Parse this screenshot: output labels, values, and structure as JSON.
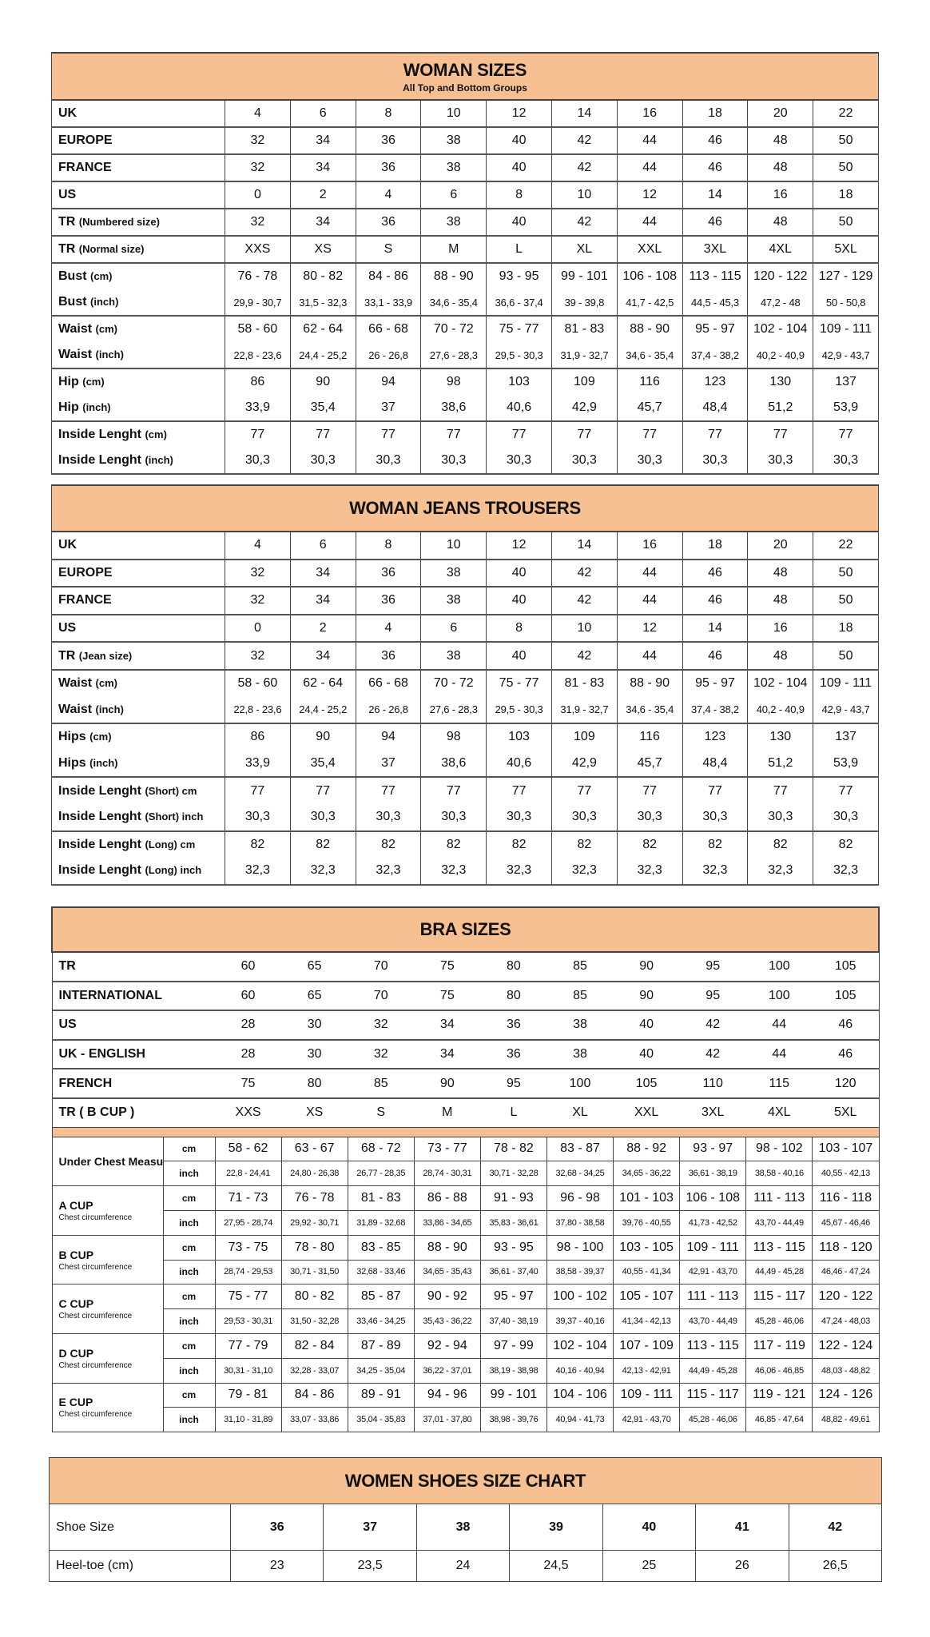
{
  "colors": {
    "header_bg": "#f6c093",
    "border": "#444444"
  },
  "woman_sizes": {
    "title": "WOMAN SIZES",
    "subtitle": "All Top and Bottom Groups",
    "sections": [
      [
        {
          "label": "UK",
          "unit": "",
          "values": [
            "4",
            "6",
            "8",
            "10",
            "12",
            "14",
            "16",
            "18",
            "20",
            "22"
          ]
        }
      ],
      [
        {
          "label": "EUROPE",
          "unit": "",
          "values": [
            "32",
            "34",
            "36",
            "38",
            "40",
            "42",
            "44",
            "46",
            "48",
            "50"
          ]
        }
      ],
      [
        {
          "label": "FRANCE",
          "unit": "",
          "values": [
            "32",
            "34",
            "36",
            "38",
            "40",
            "42",
            "44",
            "46",
            "48",
            "50"
          ]
        }
      ],
      [
        {
          "label": "US",
          "unit": "",
          "values": [
            "0",
            "2",
            "4",
            "6",
            "8",
            "10",
            "12",
            "14",
            "16",
            "18"
          ]
        }
      ],
      [
        {
          "label": "TR",
          "unit": "(Numbered size)",
          "values": [
            "32",
            "34",
            "36",
            "38",
            "40",
            "42",
            "44",
            "46",
            "48",
            "50"
          ]
        }
      ],
      [
        {
          "label": "TR",
          "unit": "(Normal size)",
          "values": [
            "XXS",
            "XS",
            "S",
            "M",
            "L",
            "XL",
            "XXL",
            "3XL",
            "4XL",
            "5XL"
          ]
        }
      ],
      [
        {
          "label": "Bust",
          "unit": "(cm)",
          "values": [
            "76 - 78",
            "80 - 82",
            "84 - 86",
            "88 - 90",
            "93 - 95",
            "99 - 101",
            "106 - 108",
            "113 - 115",
            "120 - 122",
            "127 - 129"
          ]
        },
        {
          "label": "Bust",
          "unit": "(inch)",
          "small": true,
          "values": [
            "29,9 - 30,7",
            "31,5 - 32,3",
            "33,1 - 33,9",
            "34,6 - 35,4",
            "36,6 - 37,4",
            "39 - 39,8",
            "41,7 - 42,5",
            "44,5 - 45,3",
            "47,2 - 48",
            "50 - 50,8"
          ]
        }
      ],
      [
        {
          "label": "Waist",
          "unit": "(cm)",
          "values": [
            "58 - 60",
            "62 - 64",
            "66 - 68",
            "70 - 72",
            "75 - 77",
            "81 - 83",
            "88 - 90",
            "95 - 97",
            "102 - 104",
            "109 - 111"
          ]
        },
        {
          "label": "Waist",
          "unit": "(inch)",
          "small": true,
          "values": [
            "22,8 - 23,6",
            "24,4 - 25,2",
            "26 - 26,8",
            "27,6 - 28,3",
            "29,5 - 30,3",
            "31,9 - 32,7",
            "34,6 - 35,4",
            "37,4 - 38,2",
            "40,2 - 40,9",
            "42,9 - 43,7"
          ]
        }
      ],
      [
        {
          "label": "Hip",
          "unit": "(cm)",
          "values": [
            "86",
            "90",
            "94",
            "98",
            "103",
            "109",
            "116",
            "123",
            "130",
            "137"
          ]
        },
        {
          "label": "Hip",
          "unit": "(inch)",
          "values": [
            "33,9",
            "35,4",
            "37",
            "38,6",
            "40,6",
            "42,9",
            "45,7",
            "48,4",
            "51,2",
            "53,9"
          ]
        }
      ],
      [
        {
          "label": "Inside Lenght",
          "unit": "(cm)",
          "values": [
            "77",
            "77",
            "77",
            "77",
            "77",
            "77",
            "77",
            "77",
            "77",
            "77"
          ]
        },
        {
          "label": "Inside Lenght",
          "unit": "(inch)",
          "values": [
            "30,3",
            "30,3",
            "30,3",
            "30,3",
            "30,3",
            "30,3",
            "30,3",
            "30,3",
            "30,3",
            "30,3"
          ]
        }
      ]
    ]
  },
  "woman_jeans": {
    "title": "WOMAN JEANS TROUSERS",
    "sections": [
      [
        {
          "label": "UK",
          "unit": "",
          "values": [
            "4",
            "6",
            "8",
            "10",
            "12",
            "14",
            "16",
            "18",
            "20",
            "22"
          ]
        }
      ],
      [
        {
          "label": "EUROPE",
          "unit": "",
          "values": [
            "32",
            "34",
            "36",
            "38",
            "40",
            "42",
            "44",
            "46",
            "48",
            "50"
          ]
        }
      ],
      [
        {
          "label": "FRANCE",
          "unit": "",
          "values": [
            "32",
            "34",
            "36",
            "38",
            "40",
            "42",
            "44",
            "46",
            "48",
            "50"
          ]
        }
      ],
      [
        {
          "label": "US",
          "unit": "",
          "values": [
            "0",
            "2",
            "4",
            "6",
            "8",
            "10",
            "12",
            "14",
            "16",
            "18"
          ]
        }
      ],
      [
        {
          "label": "TR",
          "unit": "(Jean size)",
          "values": [
            "32",
            "34",
            "36",
            "38",
            "40",
            "42",
            "44",
            "46",
            "48",
            "50"
          ]
        }
      ],
      [
        {
          "label": "Waist",
          "unit": "(cm)",
          "values": [
            "58 - 60",
            "62 - 64",
            "66 - 68",
            "70 - 72",
            "75 - 77",
            "81 - 83",
            "88 - 90",
            "95 - 97",
            "102 - 104",
            "109 - 111"
          ]
        },
        {
          "label": "Waist",
          "unit": "(inch)",
          "small": true,
          "values": [
            "22,8 - 23,6",
            "24,4 - 25,2",
            "26 - 26,8",
            "27,6 - 28,3",
            "29,5 - 30,3",
            "31,9 - 32,7",
            "34,6 - 35,4",
            "37,4 - 38,2",
            "40,2 - 40,9",
            "42,9 - 43,7"
          ]
        }
      ],
      [
        {
          "label": "Hips",
          "unit": "(cm)",
          "values": [
            "86",
            "90",
            "94",
            "98",
            "103",
            "109",
            "116",
            "123",
            "130",
            "137"
          ]
        },
        {
          "label": "Hips",
          "unit": "(inch)",
          "values": [
            "33,9",
            "35,4",
            "37",
            "38,6",
            "40,6",
            "42,9",
            "45,7",
            "48,4",
            "51,2",
            "53,9"
          ]
        }
      ],
      [
        {
          "label": "Inside Lenght",
          "unit": "(Short) cm",
          "values": [
            "77",
            "77",
            "77",
            "77",
            "77",
            "77",
            "77",
            "77",
            "77",
            "77"
          ]
        },
        {
          "label": "Inside Lenght",
          "unit": "(Short) inch",
          "values": [
            "30,3",
            "30,3",
            "30,3",
            "30,3",
            "30,3",
            "30,3",
            "30,3",
            "30,3",
            "30,3",
            "30,3"
          ]
        }
      ],
      [
        {
          "label": "Inside Lenght",
          "unit": "(Long) cm",
          "values": [
            "82",
            "82",
            "82",
            "82",
            "82",
            "82",
            "82",
            "82",
            "82",
            "82"
          ]
        },
        {
          "label": "Inside Lenght",
          "unit": "(Long) inch",
          "values": [
            "32,3",
            "32,3",
            "32,3",
            "32,3",
            "32,3",
            "32,3",
            "32,3",
            "32,3",
            "32,3",
            "32,3"
          ]
        }
      ]
    ]
  },
  "bra_sizes": {
    "title": "BRA SIZES",
    "rows": [
      {
        "label": "TR",
        "values": [
          "60",
          "65",
          "70",
          "75",
          "80",
          "85",
          "90",
          "95",
          "100",
          "105"
        ]
      },
      {
        "label": "INTERNATIONAL",
        "values": [
          "60",
          "65",
          "70",
          "75",
          "80",
          "85",
          "90",
          "95",
          "100",
          "105"
        ]
      },
      {
        "label": "US",
        "values": [
          "28",
          "30",
          "32",
          "34",
          "36",
          "38",
          "40",
          "42",
          "44",
          "46"
        ]
      },
      {
        "label": "UK - ENGLISH",
        "values": [
          "28",
          "30",
          "32",
          "34",
          "36",
          "38",
          "40",
          "42",
          "44",
          "46"
        ]
      },
      {
        "label": "FRENCH",
        "values": [
          "75",
          "80",
          "85",
          "90",
          "95",
          "100",
          "105",
          "110",
          "115",
          "120"
        ]
      },
      {
        "label": "TR ( B CUP )",
        "values": [
          "XXS",
          "XS",
          "S",
          "M",
          "L",
          "XL",
          "XXL",
          "3XL",
          "4XL",
          "5XL"
        ]
      }
    ],
    "unit_cm": "cm",
    "unit_inch": "inch",
    "cups": [
      {
        "name": "Under Chest Measurement",
        "sub": "",
        "cm": [
          "58 - 62",
          "63 - 67",
          "68 - 72",
          "73 - 77",
          "78 - 82",
          "83 - 87",
          "88 - 92",
          "93 - 97",
          "98 - 102",
          "103 - 107"
        ],
        "inch": [
          "22,8 - 24,41",
          "24,80 - 26,38",
          "26,77 - 28,35",
          "28,74 - 30,31",
          "30,71 - 32,28",
          "32,68 - 34,25",
          "34,65 - 36,22",
          "36,61 - 38,19",
          "38,58 - 40,16",
          "40,55 - 42,13"
        ]
      },
      {
        "name": "A CUP",
        "sub": "Chest circumference",
        "cm": [
          "71 - 73",
          "76 - 78",
          "81 - 83",
          "86 - 88",
          "91 - 93",
          "96 - 98",
          "101 - 103",
          "106 - 108",
          "111 - 113",
          "116 - 118"
        ],
        "inch": [
          "27,95 - 28,74",
          "29,92 - 30,71",
          "31,89 - 32,68",
          "33,86 - 34,65",
          "35,83 - 36,61",
          "37,80 - 38,58",
          "39,76 - 40,55",
          "41,73 - 42,52",
          "43,70 - 44,49",
          "45,67 - 46,46"
        ]
      },
      {
        "name": "B CUP",
        "sub": "Chest circumference",
        "cm": [
          "73 - 75",
          "78 - 80",
          "83 - 85",
          "88 - 90",
          "93 - 95",
          "98 - 100",
          "103 - 105",
          "109 - 111",
          "113 - 115",
          "118 - 120"
        ],
        "inch": [
          "28,74 - 29,53",
          "30,71 - 31,50",
          "32,68 - 33,46",
          "34,65 - 35,43",
          "36,61 - 37,40",
          "38,58 - 39,37",
          "40,55 - 41,34",
          "42,91 - 43,70",
          "44,49 - 45,28",
          "46,46 - 47,24"
        ]
      },
      {
        "name": "C CUP",
        "sub": "Chest circumference",
        "cm": [
          "75 - 77",
          "80 - 82",
          "85 - 87",
          "90 - 92",
          "95 - 97",
          "100 - 102",
          "105 - 107",
          "111 - 113",
          "115 - 117",
          "120 - 122"
        ],
        "inch": [
          "29,53 - 30,31",
          "31,50 - 32,28",
          "33,46 - 34,25",
          "35,43 - 36,22",
          "37,40 - 38,19",
          "39,37 - 40,16",
          "41,34 - 42,13",
          "43,70 - 44,49",
          "45,28 - 46,06",
          "47,24 - 48,03"
        ]
      },
      {
        "name": "D CUP",
        "sub": "Chest circumference",
        "cm": [
          "77 - 79",
          "82 - 84",
          "87 - 89",
          "92 - 94",
          "97 - 99",
          "102 - 104",
          "107 - 109",
          "113 - 115",
          "117 - 119",
          "122 - 124"
        ],
        "inch": [
          "30,31 - 31,10",
          "32,28 - 33,07",
          "34,25 - 35,04",
          "36,22 - 37,01",
          "38,19 - 38,98",
          "40,16 - 40,94",
          "42,13 - 42,91",
          "44,49 - 45,28",
          "46,06 - 46,85",
          "48,03 - 48,82"
        ]
      },
      {
        "name": "E CUP",
        "sub": "Chest circumference",
        "cm": [
          "79 - 81",
          "84 - 86",
          "89 - 91",
          "94 - 96",
          "99 - 101",
          "104 - 106",
          "109 - 111",
          "115 - 117",
          "119 - 121",
          "124 - 126"
        ],
        "inch": [
          "31,10 - 31,89",
          "33,07 - 33,86",
          "35,04 - 35,83",
          "37,01 - 37,80",
          "38,98 - 39,76",
          "40,94 - 41,73",
          "42,91 - 43,70",
          "45,28 - 46,06",
          "46,85 - 47,64",
          "48,82 - 49,61"
        ]
      }
    ]
  },
  "shoes": {
    "title": "WOMEN SHOES SIZE CHART",
    "rows": [
      {
        "label": "Shoe Size",
        "values": [
          "36",
          "37",
          "38",
          "39",
          "40",
          "41",
          "42"
        ]
      },
      {
        "label": "Heel-toe (cm)",
        "values": [
          "23",
          "23,5",
          "24",
          "24,5",
          "25",
          "26",
          "26,5"
        ]
      }
    ]
  }
}
